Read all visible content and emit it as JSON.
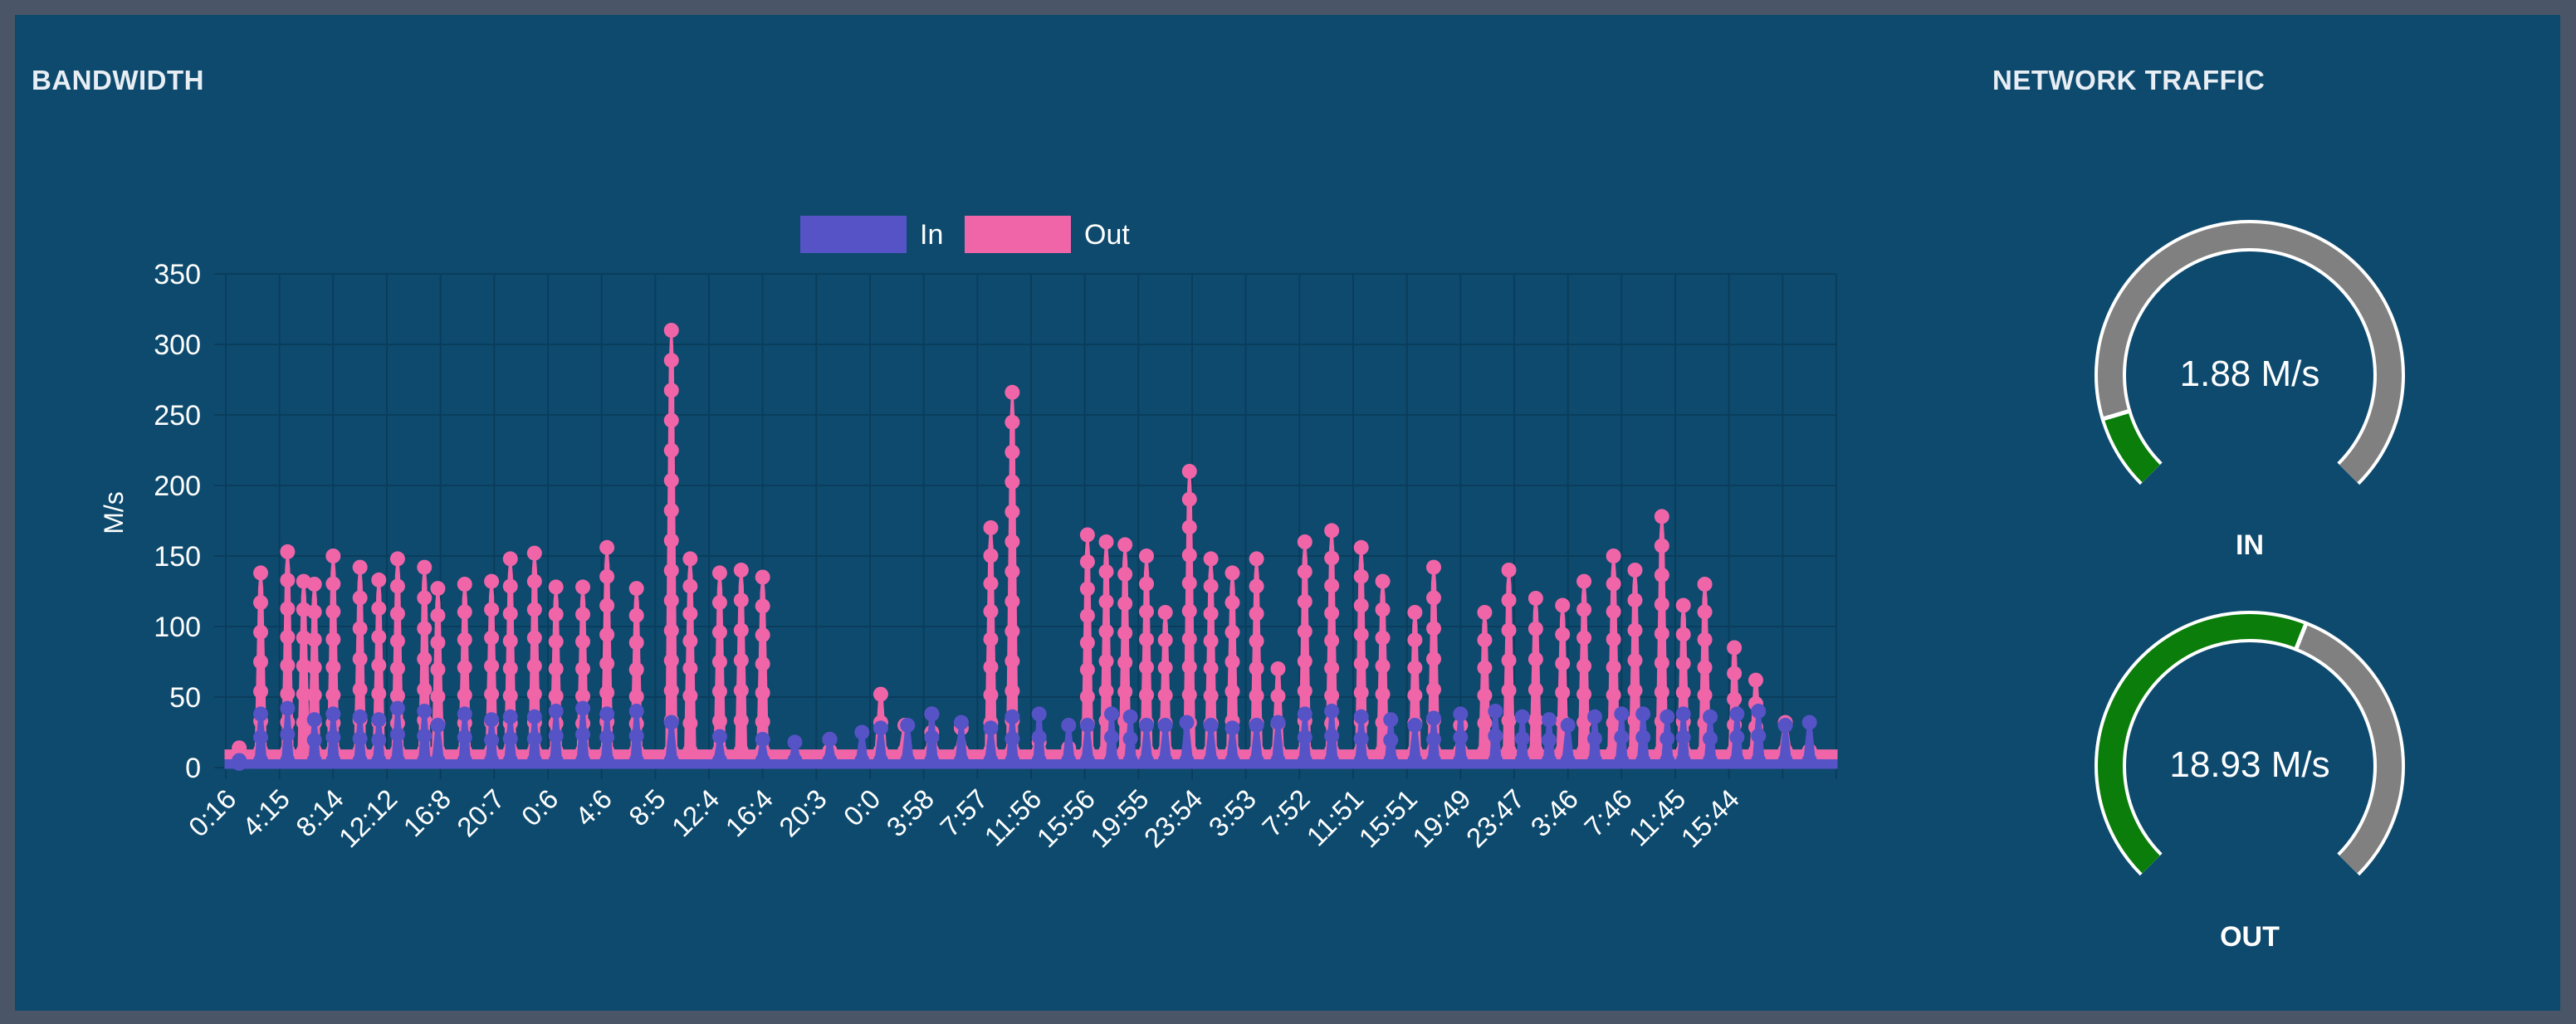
{
  "bandwidth": {
    "title": "BANDWIDTH"
  },
  "network_traffic": {
    "title": "NETWORK TRAFFIC",
    "gauges": [
      {
        "label": "IN",
        "value_text": "1.88 M/s",
        "fraction": 0.105
      },
      {
        "label": "OUT",
        "value_text": "18.93 M/s",
        "fraction": 0.58
      }
    ]
  },
  "colors": {
    "panel": "#0d4a6e",
    "in": "#5653c7",
    "out": "#ef65a8",
    "gauge_fill": "#0a7d0a",
    "gauge_empty": "#808080",
    "grid": "#0a3d5c",
    "text": "#ffffff"
  },
  "chart_data": {
    "type": "line",
    "title": "",
    "xlabel": "",
    "ylabel": "M/s",
    "ylim": [
      0,
      350
    ],
    "yticks": [
      0,
      50,
      100,
      150,
      200,
      250,
      300,
      350
    ],
    "legend": {
      "position": "top-center",
      "entries": [
        "In",
        "Out"
      ]
    },
    "x_tick_labels": [
      "0:16",
      "4:15",
      "8:14",
      "12:12",
      "16:8",
      "20:7",
      "0:6",
      "4:6",
      "8:5",
      "12:4",
      "16:4",
      "20:3",
      "0:0",
      "3:58",
      "7:57",
      "11:56",
      "15:56",
      "19:55",
      "23:54",
      "3:53",
      "7:52",
      "11:51",
      "15:51",
      "19:49",
      "23:47",
      "3:46",
      "7:46",
      "11:45",
      "15:44"
    ],
    "series": [
      {
        "name": "In",
        "peaks": [
          [
            0.5,
            3
          ],
          [
            1.3,
            38
          ],
          [
            2.3,
            42
          ],
          [
            3.3,
            34
          ],
          [
            4.0,
            38
          ],
          [
            5.0,
            36
          ],
          [
            5.7,
            34
          ],
          [
            6.4,
            42
          ],
          [
            7.4,
            40
          ],
          [
            7.9,
            30
          ],
          [
            8.9,
            38
          ],
          [
            9.9,
            34
          ],
          [
            10.6,
            36
          ],
          [
            11.5,
            36
          ],
          [
            12.3,
            40
          ],
          [
            13.3,
            42
          ],
          [
            14.2,
            38
          ],
          [
            15.3,
            40
          ],
          [
            16.6,
            32
          ],
          [
            18.4,
            22
          ],
          [
            20.0,
            20
          ],
          [
            21.2,
            18
          ],
          [
            22.5,
            20
          ],
          [
            23.7,
            25
          ],
          [
            24.4,
            28
          ],
          [
            25.4,
            30
          ],
          [
            26.3,
            38
          ],
          [
            27.4,
            32
          ],
          [
            28.5,
            28
          ],
          [
            29.3,
            36
          ],
          [
            30.3,
            38
          ],
          [
            31.4,
            30
          ],
          [
            32.1,
            30
          ],
          [
            33.0,
            38
          ],
          [
            33.7,
            36
          ],
          [
            34.3,
            30
          ],
          [
            35.0,
            30
          ],
          [
            35.8,
            32
          ],
          [
            36.7,
            30
          ],
          [
            37.5,
            28
          ],
          [
            38.4,
            30
          ],
          [
            39.2,
            32
          ],
          [
            40.2,
            38
          ],
          [
            41.2,
            40
          ],
          [
            42.3,
            36
          ],
          [
            43.4,
            34
          ],
          [
            44.3,
            30
          ],
          [
            45.0,
            35
          ],
          [
            46.0,
            38
          ],
          [
            47.3,
            40
          ],
          [
            48.3,
            36
          ],
          [
            49.3,
            34
          ],
          [
            50.0,
            30
          ],
          [
            51.0,
            36
          ],
          [
            52.0,
            38
          ],
          [
            52.8,
            38
          ],
          [
            53.7,
            36
          ],
          [
            54.3,
            38
          ],
          [
            55.3,
            36
          ],
          [
            56.3,
            38
          ],
          [
            57.1,
            40
          ],
          [
            58.1,
            30
          ],
          [
            59.0,
            32
          ]
        ]
      },
      {
        "name": "Out",
        "peaks": [
          [
            0.5,
            14
          ],
          [
            1.3,
            138
          ],
          [
            2.3,
            153
          ],
          [
            2.9,
            132
          ],
          [
            3.3,
            130
          ],
          [
            4.0,
            150
          ],
          [
            5.0,
            142
          ],
          [
            5.7,
            133
          ],
          [
            6.4,
            148
          ],
          [
            7.4,
            142
          ],
          [
            7.9,
            127
          ],
          [
            8.9,
            130
          ],
          [
            9.9,
            132
          ],
          [
            10.6,
            148
          ],
          [
            11.5,
            152
          ],
          [
            12.3,
            128
          ],
          [
            13.3,
            128
          ],
          [
            14.2,
            156
          ],
          [
            15.3,
            127
          ],
          [
            16.6,
            310
          ],
          [
            17.3,
            148
          ],
          [
            18.4,
            138
          ],
          [
            19.2,
            140
          ],
          [
            20.0,
            135
          ],
          [
            22.5,
            20
          ],
          [
            24.4,
            52
          ],
          [
            25.3,
            30
          ],
          [
            26.3,
            38
          ],
          [
            27.4,
            28
          ],
          [
            28.5,
            170
          ],
          [
            29.3,
            266
          ],
          [
            30.3,
            18
          ],
          [
            31.4,
            14
          ],
          [
            32.1,
            165
          ],
          [
            32.8,
            160
          ],
          [
            33.5,
            158
          ],
          [
            34.3,
            150
          ],
          [
            35.0,
            110
          ],
          [
            35.9,
            210
          ],
          [
            36.7,
            148
          ],
          [
            37.5,
            138
          ],
          [
            38.4,
            148
          ],
          [
            39.2,
            70
          ],
          [
            40.2,
            160
          ],
          [
            41.2,
            168
          ],
          [
            42.3,
            156
          ],
          [
            43.1,
            132
          ],
          [
            44.3,
            110
          ],
          [
            45.0,
            142
          ],
          [
            46.0,
            30
          ],
          [
            46.9,
            110
          ],
          [
            47.8,
            140
          ],
          [
            48.8,
            120
          ],
          [
            49.8,
            115
          ],
          [
            50.6,
            132
          ],
          [
            51.7,
            150
          ],
          [
            52.5,
            140
          ],
          [
            53.5,
            178
          ],
          [
            54.3,
            115
          ],
          [
            55.1,
            130
          ],
          [
            56.2,
            85
          ],
          [
            57.0,
            62
          ],
          [
            58.1,
            32
          ],
          [
            59.0,
            10
          ]
        ]
      }
    ]
  }
}
